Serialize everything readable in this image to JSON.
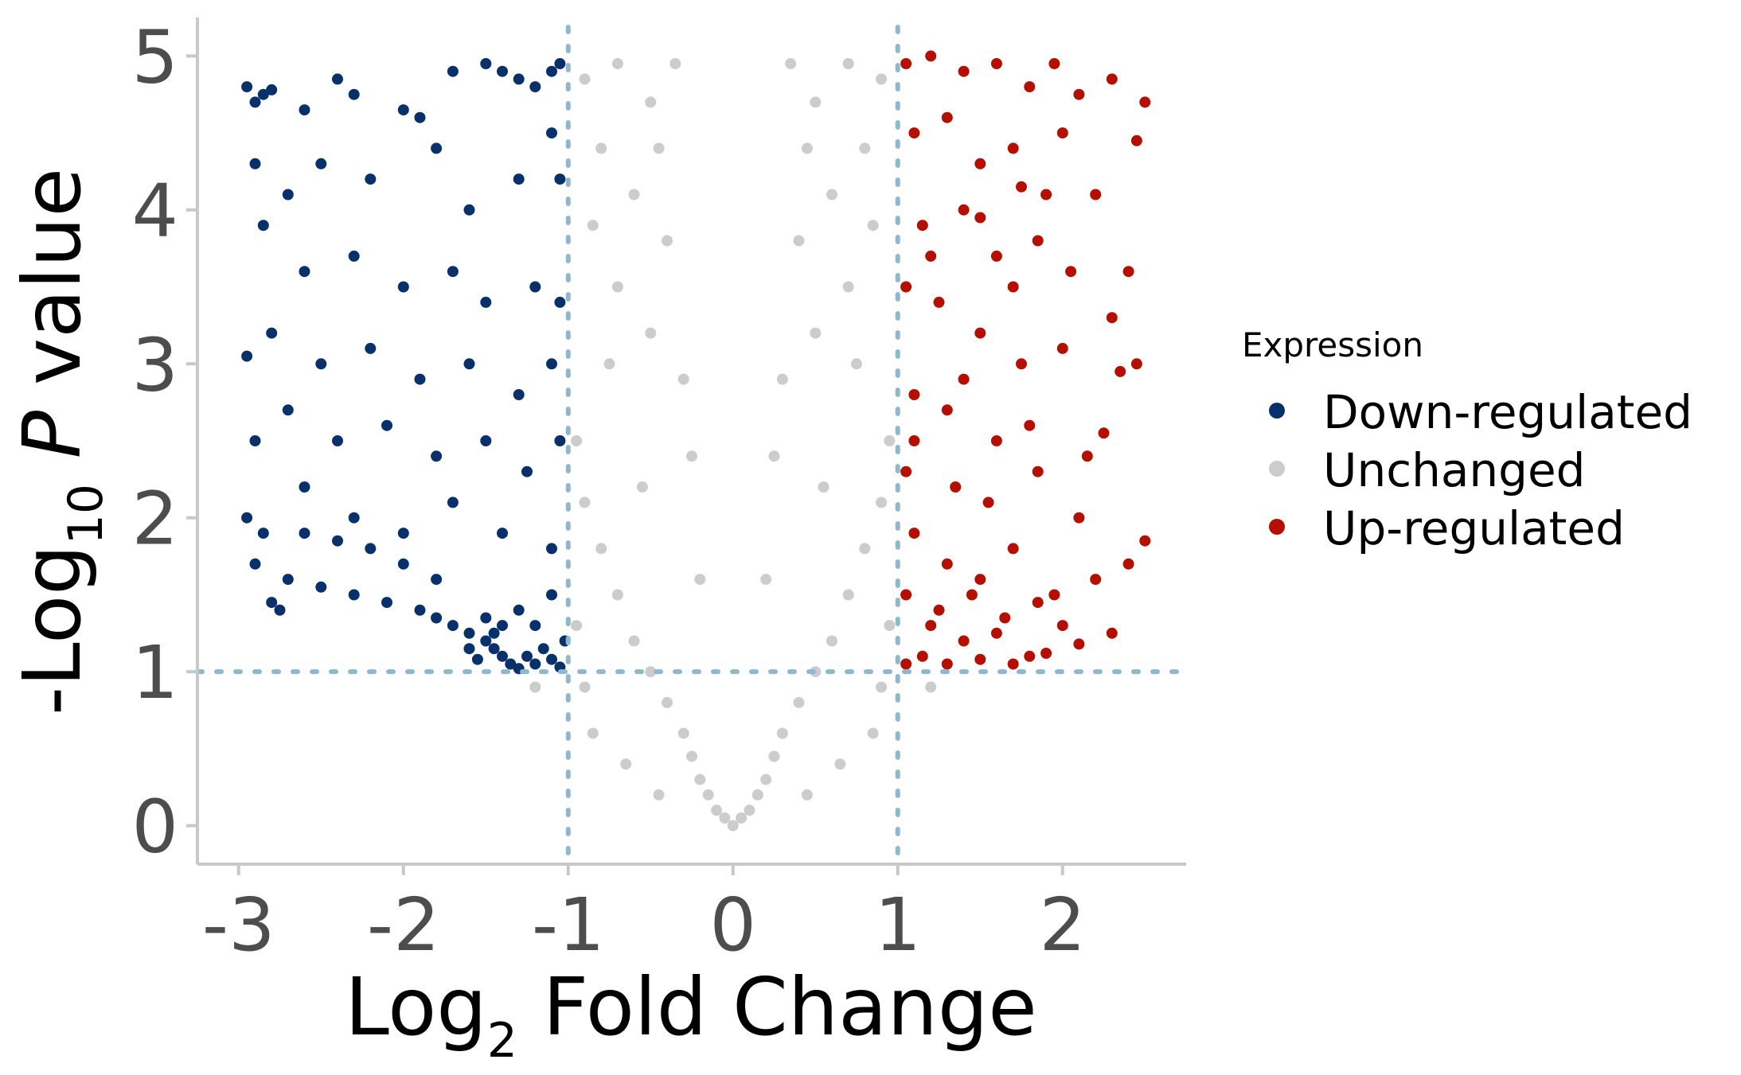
{
  "chart_data": {
    "type": "scatter",
    "title": "",
    "xlabel": {
      "base": "Log",
      "subscript": "2",
      "rest": " Fold Change"
    },
    "ylabel": {
      "prefix": "-Log",
      "subscript": "10",
      "italic": "P",
      "rest": " value"
    },
    "xlim": [
      -3.25,
      2.75
    ],
    "ylim": [
      -0.25,
      5.25
    ],
    "x_ticks": [
      {
        "value": -3,
        "label": "-3"
      },
      {
        "value": -2,
        "label": "-2"
      },
      {
        "value": -1,
        "label": "-1"
      },
      {
        "value": 0,
        "label": "0"
      },
      {
        "value": 1,
        "label": "1"
      },
      {
        "value": 2,
        "label": "2"
      }
    ],
    "y_ticks": [
      {
        "value": 0,
        "label": "0"
      },
      {
        "value": 1,
        "label": "1"
      },
      {
        "value": 2,
        "label": "2"
      },
      {
        "value": 3,
        "label": "3"
      },
      {
        "value": 4,
        "label": "4"
      },
      {
        "value": 5,
        "label": "5"
      }
    ],
    "thresholds": {
      "vertical": [
        -1,
        1
      ],
      "horizontal": [
        1
      ]
    },
    "grid": false,
    "legend": {
      "title": "Expression",
      "placement": "right"
    },
    "series": [
      {
        "name": "Down-regulated",
        "color": "#08306b",
        "points": [
          [
            -2.95,
            4.8
          ],
          [
            -2.9,
            4.7
          ],
          [
            -2.85,
            4.75
          ],
          [
            -2.8,
            4.78
          ],
          [
            -2.6,
            4.65
          ],
          [
            -2.4,
            4.85
          ],
          [
            -2.3,
            4.75
          ],
          [
            -2.0,
            4.65
          ],
          [
            -1.9,
            4.6
          ],
          [
            -1.7,
            4.9
          ],
          [
            -1.5,
            4.95
          ],
          [
            -1.4,
            4.9
          ],
          [
            -1.3,
            4.85
          ],
          [
            -1.2,
            4.8
          ],
          [
            -1.1,
            4.9
          ],
          [
            -1.05,
            4.95
          ],
          [
            -2.9,
            4.3
          ],
          [
            -2.7,
            4.1
          ],
          [
            -2.5,
            4.3
          ],
          [
            -2.2,
            4.2
          ],
          [
            -1.8,
            4.4
          ],
          [
            -1.6,
            4.0
          ],
          [
            -1.3,
            4.2
          ],
          [
            -1.1,
            4.5
          ],
          [
            -1.05,
            4.2
          ],
          [
            -2.85,
            3.9
          ],
          [
            -2.6,
            3.6
          ],
          [
            -2.3,
            3.7
          ],
          [
            -2.0,
            3.5
          ],
          [
            -1.7,
            3.6
          ],
          [
            -1.5,
            3.4
          ],
          [
            -1.2,
            3.5
          ],
          [
            -1.05,
            3.4
          ],
          [
            -2.95,
            3.05
          ],
          [
            -2.8,
            3.2
          ],
          [
            -2.5,
            3.0
          ],
          [
            -2.2,
            3.1
          ],
          [
            -1.9,
            2.9
          ],
          [
            -1.6,
            3.0
          ],
          [
            -1.3,
            2.8
          ],
          [
            -1.1,
            3.0
          ],
          [
            -2.9,
            2.5
          ],
          [
            -2.7,
            2.7
          ],
          [
            -2.4,
            2.5
          ],
          [
            -2.1,
            2.6
          ],
          [
            -1.8,
            2.4
          ],
          [
            -1.5,
            2.5
          ],
          [
            -1.25,
            2.3
          ],
          [
            -1.05,
            2.5
          ],
          [
            -2.95,
            2.0
          ],
          [
            -2.85,
            1.9
          ],
          [
            -2.6,
            2.2
          ],
          [
            -2.3,
            2.0
          ],
          [
            -2.0,
            1.9
          ],
          [
            -1.7,
            2.1
          ],
          [
            -1.4,
            1.9
          ],
          [
            -1.1,
            1.8
          ],
          [
            -2.9,
            1.7
          ],
          [
            -2.7,
            1.6
          ],
          [
            -2.5,
            1.55
          ],
          [
            -2.3,
            1.5
          ],
          [
            -2.1,
            1.45
          ],
          [
            -1.9,
            1.4
          ],
          [
            -1.8,
            1.35
          ],
          [
            -1.7,
            1.3
          ],
          [
            -1.6,
            1.25
          ],
          [
            -1.5,
            1.2
          ],
          [
            -1.45,
            1.15
          ],
          [
            -1.4,
            1.1
          ],
          [
            -1.35,
            1.05
          ],
          [
            -1.3,
            1.02
          ],
          [
            -1.25,
            1.1
          ],
          [
            -1.2,
            1.05
          ],
          [
            -1.15,
            1.15
          ],
          [
            -1.1,
            1.08
          ],
          [
            -1.05,
            1.03
          ],
          [
            -1.02,
            1.2
          ],
          [
            -1.5,
            1.35
          ],
          [
            -1.6,
            1.15
          ],
          [
            -1.55,
            1.08
          ],
          [
            -1.45,
            1.25
          ],
          [
            -1.4,
            1.3
          ],
          [
            -1.3,
            1.4
          ],
          [
            -1.2,
            1.3
          ],
          [
            -1.1,
            1.5
          ],
          [
            -1.8,
            1.6
          ],
          [
            -2.0,
            1.7
          ],
          [
            -2.2,
            1.8
          ],
          [
            -2.4,
            1.85
          ],
          [
            -2.6,
            1.9
          ],
          [
            -2.8,
            1.45
          ],
          [
            -2.75,
            1.4
          ]
        ]
      },
      {
        "name": "Unchanged",
        "color": "#cccccc",
        "points": [
          [
            0,
            0
          ],
          [
            0.05,
            0.05
          ],
          [
            -0.05,
            0.05
          ],
          [
            0.1,
            0.1
          ],
          [
            -0.1,
            0.1
          ],
          [
            0.15,
            0.2
          ],
          [
            -0.15,
            0.2
          ],
          [
            0.2,
            0.3
          ],
          [
            -0.2,
            0.3
          ],
          [
            0.25,
            0.45
          ],
          [
            -0.25,
            0.45
          ],
          [
            0.3,
            0.6
          ],
          [
            -0.3,
            0.6
          ],
          [
            0.4,
            0.8
          ],
          [
            -0.4,
            0.8
          ],
          [
            0.5,
            1.0
          ],
          [
            -0.5,
            1.0
          ],
          [
            0.6,
            1.2
          ],
          [
            -0.6,
            1.2
          ],
          [
            0.7,
            1.5
          ],
          [
            -0.7,
            1.5
          ],
          [
            0.8,
            1.8
          ],
          [
            -0.8,
            1.8
          ],
          [
            0.9,
            2.1
          ],
          [
            -0.9,
            2.1
          ],
          [
            0.95,
            2.5
          ],
          [
            -0.95,
            2.5
          ],
          [
            0.3,
            2.9
          ],
          [
            -0.3,
            2.9
          ],
          [
            0.5,
            3.2
          ],
          [
            -0.5,
            3.2
          ],
          [
            0.7,
            3.5
          ],
          [
            -0.7,
            3.5
          ],
          [
            0.4,
            3.8
          ],
          [
            -0.4,
            3.8
          ],
          [
            0.6,
            4.1
          ],
          [
            -0.6,
            4.1
          ],
          [
            0.8,
            4.4
          ],
          [
            -0.8,
            4.4
          ],
          [
            0.5,
            4.7
          ],
          [
            -0.5,
            4.7
          ],
          [
            0.7,
            4.95
          ],
          [
            -0.7,
            4.95
          ],
          [
            0.9,
            4.85
          ],
          [
            -0.9,
            4.85
          ],
          [
            0.35,
            4.95
          ],
          [
            -0.35,
            4.95
          ],
          [
            0.2,
            1.6
          ],
          [
            -0.2,
            1.6
          ],
          [
            0.25,
            2.4
          ],
          [
            -0.25,
            2.4
          ],
          [
            0.9,
            0.9
          ],
          [
            -0.9,
            0.9
          ],
          [
            0.95,
            1.3
          ],
          [
            -0.95,
            1.3
          ],
          [
            0.85,
            0.6
          ],
          [
            -0.85,
            0.6
          ],
          [
            1.2,
            0.9
          ],
          [
            -1.2,
            0.9
          ],
          [
            0.65,
            0.4
          ],
          [
            -0.65,
            0.4
          ],
          [
            0.45,
            0.2
          ],
          [
            -0.45,
            0.2
          ],
          [
            0.75,
            3.0
          ],
          [
            -0.75,
            3.0
          ],
          [
            0.55,
            2.2
          ],
          [
            -0.55,
            2.2
          ],
          [
            0.85,
            3.9
          ],
          [
            -0.85,
            3.9
          ],
          [
            0.45,
            4.4
          ],
          [
            -0.45,
            4.4
          ]
        ]
      },
      {
        "name": "Up-regulated",
        "color": "#b40f00",
        "points": [
          [
            1.05,
            4.95
          ],
          [
            1.2,
            5.0
          ],
          [
            1.4,
            4.9
          ],
          [
            1.6,
            4.95
          ],
          [
            1.8,
            4.8
          ],
          [
            1.95,
            4.95
          ],
          [
            2.1,
            4.75
          ],
          [
            2.3,
            4.85
          ],
          [
            2.5,
            4.7
          ],
          [
            2.45,
            4.45
          ],
          [
            1.1,
            4.5
          ],
          [
            1.3,
            4.6
          ],
          [
            1.5,
            4.3
          ],
          [
            1.7,
            4.4
          ],
          [
            1.9,
            4.1
          ],
          [
            2.2,
            4.1
          ],
          [
            1.15,
            3.9
          ],
          [
            1.4,
            4.0
          ],
          [
            1.6,
            3.7
          ],
          [
            1.85,
            3.8
          ],
          [
            2.05,
            3.6
          ],
          [
            2.3,
            3.3
          ],
          [
            1.05,
            3.5
          ],
          [
            1.25,
            3.4
          ],
          [
            1.5,
            3.2
          ],
          [
            1.75,
            3.0
          ],
          [
            2.0,
            3.1
          ],
          [
            2.35,
            2.95
          ],
          [
            1.1,
            2.8
          ],
          [
            1.3,
            2.7
          ],
          [
            1.6,
            2.5
          ],
          [
            1.8,
            2.6
          ],
          [
            2.15,
            2.4
          ],
          [
            2.25,
            2.55
          ],
          [
            1.05,
            2.3
          ],
          [
            1.35,
            2.2
          ],
          [
            1.55,
            2.1
          ],
          [
            1.85,
            2.3
          ],
          [
            2.1,
            2.0
          ],
          [
            2.5,
            1.85
          ],
          [
            1.1,
            1.9
          ],
          [
            1.3,
            1.7
          ],
          [
            1.5,
            1.6
          ],
          [
            1.7,
            1.8
          ],
          [
            1.95,
            1.5
          ],
          [
            2.2,
            1.6
          ],
          [
            2.4,
            1.7
          ],
          [
            1.05,
            1.5
          ],
          [
            1.2,
            1.3
          ],
          [
            1.4,
            1.2
          ],
          [
            1.6,
            1.25
          ],
          [
            1.8,
            1.1
          ],
          [
            2.0,
            1.3
          ],
          [
            2.3,
            1.25
          ],
          [
            1.05,
            1.05
          ],
          [
            1.15,
            1.1
          ],
          [
            1.3,
            1.05
          ],
          [
            1.5,
            1.08
          ],
          [
            1.7,
            1.05
          ],
          [
            1.9,
            1.12
          ],
          [
            2.1,
            1.18
          ],
          [
            1.25,
            1.4
          ],
          [
            1.45,
            1.5
          ],
          [
            1.65,
            1.35
          ],
          [
            1.85,
            1.45
          ],
          [
            1.1,
            2.5
          ],
          [
            1.4,
            2.9
          ],
          [
            1.7,
            3.5
          ],
          [
            1.2,
            3.7
          ],
          [
            1.5,
            3.95
          ],
          [
            1.75,
            4.15
          ],
          [
            2.0,
            4.5
          ],
          [
            2.45,
            3.0
          ],
          [
            2.4,
            3.6
          ]
        ]
      }
    ]
  }
}
